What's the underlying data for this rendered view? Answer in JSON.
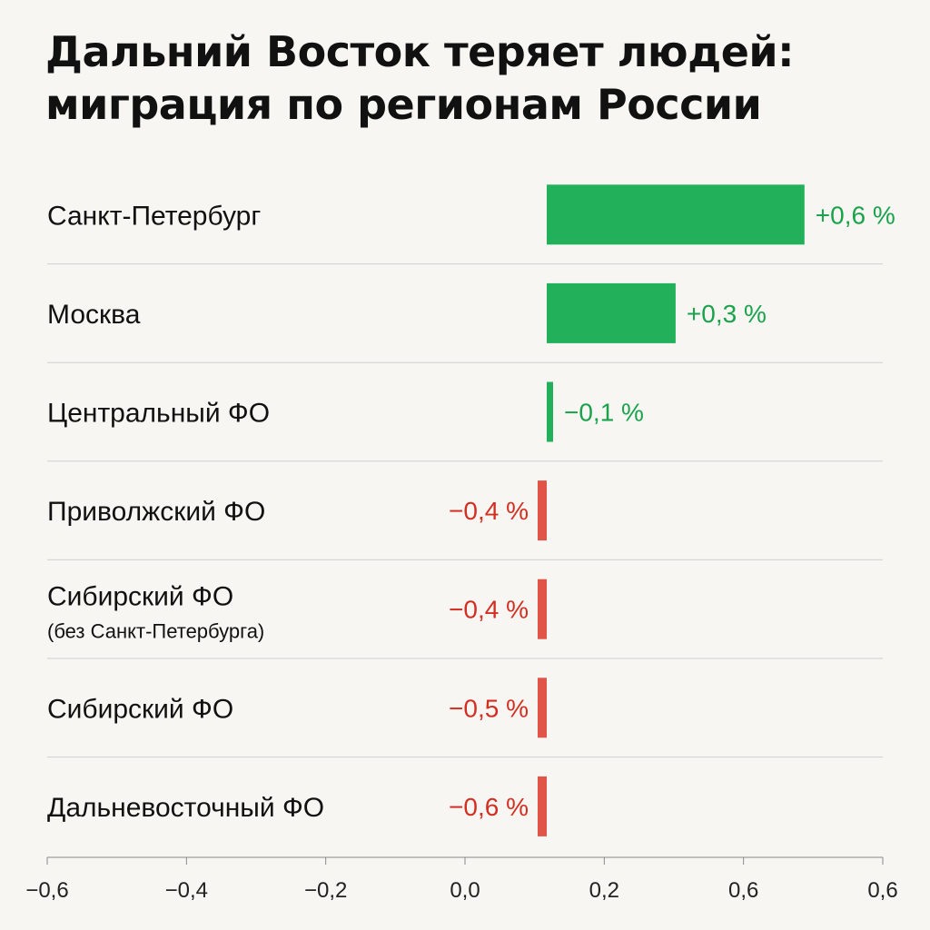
{
  "title_lines": [
    "Дальний Восток теряет людей:",
    "миграция по регионам России"
  ],
  "colors": {
    "positive": "#22b05a",
    "negative": "#e05548",
    "positive_text": "#1aa24c",
    "negative_text": "#d22f22",
    "divider": "#cfcfcf",
    "axis": "#888888"
  },
  "chart_data": {
    "type": "bar",
    "orientation": "horizontal",
    "title": "Дальний Восток теряет людей: миграция по регионам России",
    "categories": [
      "Санкт-Петербург",
      "Москва",
      "Центральный ФО",
      "Приволжский ФО",
      "Сибирский ФО",
      "Сибирский ФО",
      "Дальневосточный ФО"
    ],
    "category_notes": [
      "",
      "",
      "",
      "",
      "(без Санкт-Петербурга)",
      "",
      ""
    ],
    "values": [
      0.6,
      0.3,
      -0.1,
      -0.4,
      -0.4,
      -0.5,
      -0.6
    ],
    "value_labels": [
      "+0,6 %",
      "+0,3 %",
      "−0,1 %",
      "−0,4 %",
      "−0,4 %",
      "−0,5 %",
      "−0,6 %"
    ],
    "xlim": [
      -0.6,
      0.6
    ],
    "xticks": [
      "−0,6",
      "−0,4",
      "−0,2",
      "0,0",
      "0,2",
      "0,6",
      "0,6"
    ],
    "grid": false
  }
}
